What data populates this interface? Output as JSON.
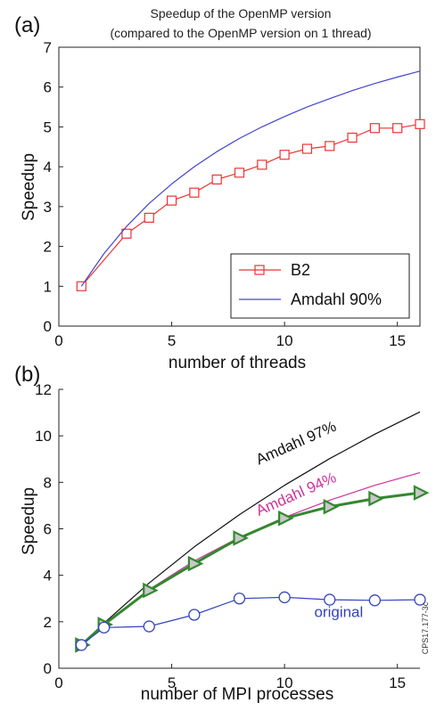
{
  "chart_data": [
    {
      "panel_label": "(a)",
      "type": "line",
      "title": "Speedup of the OpenMP version",
      "subtitle": "(compared to the OpenMP version on 1 thread)",
      "xlabel": "number of threads",
      "ylabel": "Speedup",
      "xlim": [
        0,
        16
      ],
      "ylim": [
        0,
        7
      ],
      "xticks": [
        0,
        5,
        10,
        15
      ],
      "yticks": [
        0,
        1,
        2,
        3,
        4,
        5,
        6,
        7
      ],
      "grid": false,
      "legend_position": "bottom-right",
      "series": [
        {
          "name": "B2",
          "color": "#ee3333",
          "marker": "square",
          "x": [
            1,
            3,
            4,
            5,
            6,
            7,
            8,
            9,
            10,
            11,
            12,
            13,
            14,
            15,
            16
          ],
          "y": [
            1.0,
            2.32,
            2.72,
            3.15,
            3.35,
            3.68,
            3.85,
            4.05,
            4.3,
            4.45,
            4.52,
            4.73,
            4.97,
            4.97,
            5.07
          ]
        },
        {
          "name": "Amdahl 90%",
          "color": "#4444cc",
          "marker": "none",
          "x": [
            1,
            2,
            3,
            4,
            5,
            6,
            7,
            8,
            9,
            10,
            11,
            12,
            13,
            14,
            15,
            16
          ],
          "y": [
            1.0,
            1.82,
            2.5,
            3.08,
            3.57,
            4.0,
            4.38,
            4.71,
            5.0,
            5.26,
            5.5,
            5.71,
            5.91,
            6.09,
            6.25,
            6.4
          ]
        }
      ]
    },
    {
      "panel_label": "(b)",
      "type": "line",
      "title": "",
      "xlabel": "number of MPI processes",
      "ylabel": "Speedup",
      "xlim": [
        0,
        16
      ],
      "ylim": [
        0,
        12
      ],
      "xticks": [
        0,
        5,
        10,
        15
      ],
      "yticks": [
        0,
        2,
        4,
        6,
        8,
        10,
        12
      ],
      "grid": false,
      "side_note": "CPS17.177-3c",
      "series": [
        {
          "name": "Amdahl 97%",
          "color": "#111111",
          "marker": "none",
          "label_at": [
            10.6,
            9.5
          ],
          "x": [
            1,
            2,
            4,
            6,
            8,
            10,
            12,
            14,
            16
          ],
          "y": [
            1.0,
            1.94,
            3.67,
            5.22,
            6.61,
            7.87,
            9.02,
            10.07,
            11.03
          ]
        },
        {
          "name": "Amdahl 94%",
          "color": "#cc3399",
          "marker": "none",
          "label_at": [
            10.6,
            7.3
          ],
          "x": [
            1,
            2,
            4,
            6,
            8,
            10,
            12,
            14,
            16
          ],
          "y": [
            1.0,
            1.89,
            3.39,
            4.62,
            5.63,
            6.49,
            7.23,
            7.87,
            8.42
          ]
        },
        {
          "name": "",
          "color": "#33882f",
          "marker": "triangle-right",
          "x": [
            1,
            2,
            4,
            6,
            8,
            10,
            12,
            14,
            16
          ],
          "y": [
            1.0,
            1.88,
            3.35,
            4.5,
            5.6,
            6.45,
            6.95,
            7.3,
            7.55
          ]
        },
        {
          "name": "original",
          "color": "#3344bb",
          "marker": "circle",
          "label_at": [
            12.4,
            2.2
          ],
          "x": [
            1,
            2,
            4,
            6,
            8,
            10,
            12,
            14,
            16
          ],
          "y": [
            1.0,
            1.75,
            1.8,
            2.3,
            3.0,
            3.05,
            2.95,
            2.92,
            2.95
          ]
        }
      ]
    }
  ]
}
